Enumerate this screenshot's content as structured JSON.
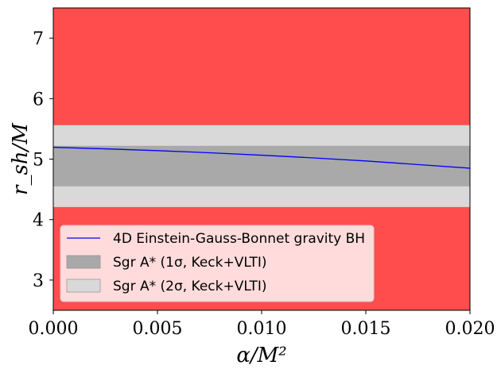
{
  "chart_data": {
    "type": "line",
    "xlabel": "α/M²",
    "ylabel": "r_sh/M",
    "xlim": [
      0.0,
      0.02
    ],
    "ylim": [
      2.5,
      7.5
    ],
    "x_ticks": [
      0.0,
      0.005,
      0.01,
      0.015,
      0.02
    ],
    "x_tick_labels": [
      "0.000",
      "0.005",
      "0.010",
      "0.015",
      "0.020"
    ],
    "y_ticks": [
      3,
      4,
      5,
      6,
      7
    ],
    "y_tick_labels": [
      "3",
      "4",
      "5",
      "6",
      "7"
    ],
    "grid": false,
    "legend_position": "lower-left",
    "excluded_region_color": "#ff4d4d",
    "series": [
      {
        "name": "4D Einstein-Gauss-Bonnet gravity BH",
        "color": "#0000ff",
        "x": [
          0.0,
          0.0025,
          0.005,
          0.0075,
          0.01,
          0.0125,
          0.015,
          0.0175,
          0.02
        ],
        "y": [
          5.196,
          5.17,
          5.14,
          5.105,
          5.065,
          5.02,
          4.97,
          4.91,
          4.85
        ]
      }
    ],
    "bands": [
      {
        "name": "Sgr A* (1σ, Keck+VLTI)",
        "ymin": 4.55,
        "ymax": 5.22,
        "color": "#a9a9a9"
      },
      {
        "name": "Sgr A* (2σ, Keck+VLTI)",
        "ymin": 4.21,
        "ymax": 5.56,
        "color": "#d9d9d9"
      }
    ]
  }
}
